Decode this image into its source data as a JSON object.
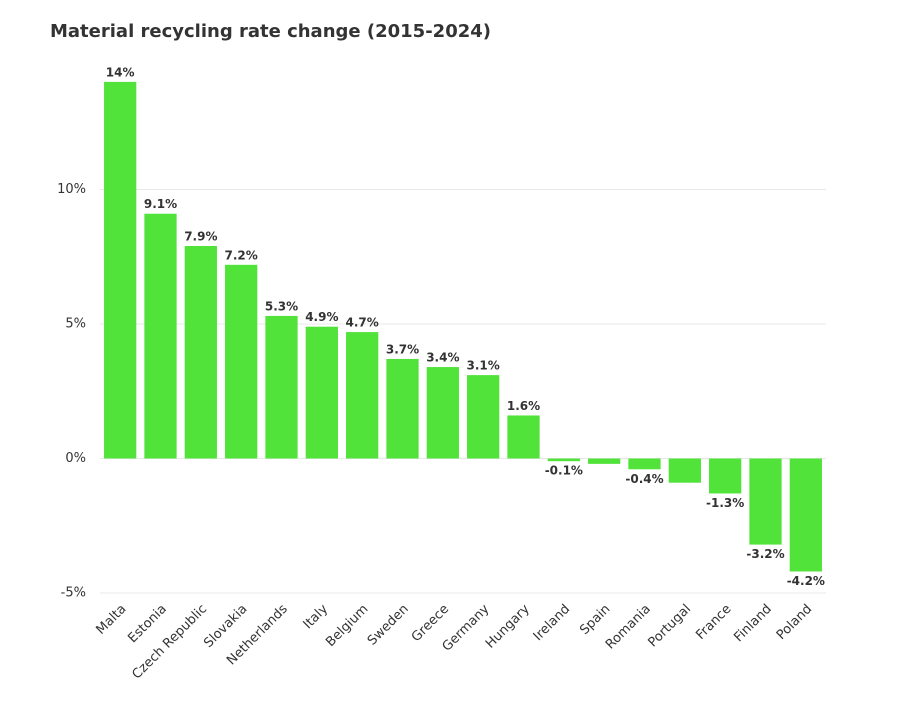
{
  "chart_data": {
    "type": "bar",
    "title": "Material recycling rate change (2015-2024)",
    "categories": [
      "Malta",
      "Estonia",
      "Czech Republic",
      "Slovakia",
      "Netherlands",
      "Italy",
      "Belgium",
      "Sweden",
      "Greece",
      "Germany",
      "Hungary",
      "Ireland",
      "Spain",
      "Romania",
      "Portugal",
      "France",
      "Finland",
      "Poland"
    ],
    "values": [
      14,
      9.1,
      7.9,
      7.2,
      5.3,
      4.9,
      4.7,
      3.7,
      3.4,
      3.1,
      1.6,
      -0.1,
      -0.2,
      -0.4,
      -0.9,
      -1.3,
      -3.2,
      -4.2
    ],
    "value_labels": [
      "14%",
      "9.1%",
      "7.9%",
      "7.2%",
      "5.3%",
      "4.9%",
      "4.7%",
      "3.7%",
      "3.4%",
      "3.1%",
      "1.6%",
      "-0.1%",
      null,
      "-0.4%",
      null,
      "-1.3%",
      "-3.2%",
      "-4.2%"
    ],
    "color": "#52e33a",
    "ylim": [
      -5,
      15
    ],
    "yticks": [
      {
        "value": -5,
        "label": "-5%"
      },
      {
        "value": 0,
        "label": "0%"
      },
      {
        "value": 5,
        "label": "5%"
      },
      {
        "value": 10,
        "label": "10%"
      }
    ],
    "grid": true
  }
}
